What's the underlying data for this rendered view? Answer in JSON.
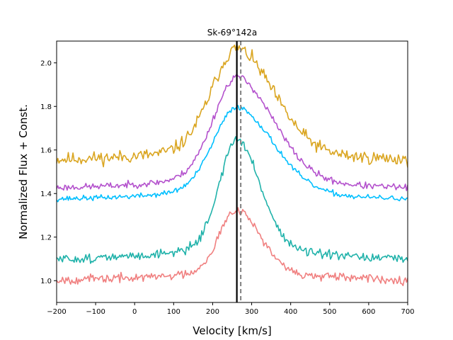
{
  "chart_data": {
    "type": "line",
    "title": "Sk-69°142a",
    "xlabel": "Velocity [km/s]",
    "ylabel": "Normalized Flux + Const.",
    "xlim": [
      -200,
      700
    ],
    "ylim": [
      0.9,
      2.1
    ],
    "xticks": [
      -200,
      -100,
      0,
      100,
      200,
      300,
      400,
      500,
      600,
      700
    ],
    "xtick_labels": [
      "−200",
      "−100",
      "0",
      "100",
      "200",
      "300",
      "400",
      "500",
      "600",
      "700"
    ],
    "yticks": [
      1.0,
      1.2,
      1.4,
      1.6,
      1.8,
      2.0
    ],
    "ytick_labels": [
      "1.0",
      "1.2",
      "1.4",
      "1.6",
      "1.8",
      "2.0"
    ],
    "vlines": [
      {
        "x": 262,
        "color": "#000000",
        "style": "solid"
      },
      {
        "x": 272,
        "color": "#808080",
        "style": "dashed"
      }
    ],
    "series": [
      {
        "name": "orange",
        "color": "#daa520",
        "base": 1.55,
        "slope_per_100": 0.0,
        "amp": 0.52,
        "center": 262,
        "sigma_left": 65,
        "sigma_right": 95,
        "noise": 0.03,
        "seed": 11
      },
      {
        "name": "violet",
        "color": "#b452cd",
        "base": 1.42,
        "slope_per_100": -0.0,
        "amp": 0.52,
        "center": 262,
        "sigma_left": 60,
        "sigma_right": 95,
        "noise": 0.015,
        "seed": 23
      },
      {
        "name": "cyan",
        "color": "#00bfff",
        "base": 1.37,
        "slope_per_100": 0.0,
        "amp": 0.43,
        "center": 262,
        "sigma_left": 60,
        "sigma_right": 95,
        "noise": 0.012,
        "seed": 37
      },
      {
        "name": "teal",
        "color": "#20b2aa",
        "base": 1.09,
        "slope_per_100": 0.0,
        "amp": 0.56,
        "center": 262,
        "sigma_left": 45,
        "sigma_right": 60,
        "noise": 0.02,
        "seed": 51
      },
      {
        "name": "salmon",
        "color": "#f08080",
        "base": 1.0,
        "slope_per_100": 0.0,
        "amp": 0.33,
        "center": 262,
        "sigma_left": 45,
        "sigma_right": 60,
        "noise": 0.02,
        "seed": 67
      }
    ],
    "legend": "none",
    "grid": false
  }
}
